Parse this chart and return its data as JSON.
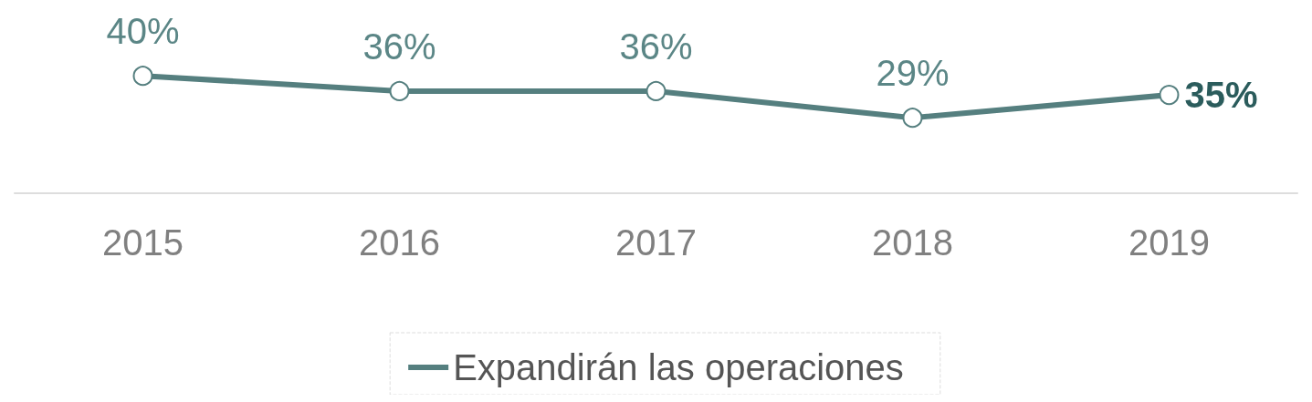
{
  "chart_data": {
    "type": "line",
    "categories": [
      "2015",
      "2016",
      "2017",
      "2018",
      "2019"
    ],
    "series": [
      {
        "name": "Expandirán las operaciones",
        "color": "#557f7f",
        "values": [
          40,
          36,
          36,
          29,
          35
        ],
        "value_labels": [
          "40%",
          "36%",
          "36%",
          "29%",
          "35%"
        ]
      }
    ],
    "tick_labels": "x",
    "marker": "circle",
    "line_style": "solid",
    "legend": "bottom",
    "grid": false
  }
}
